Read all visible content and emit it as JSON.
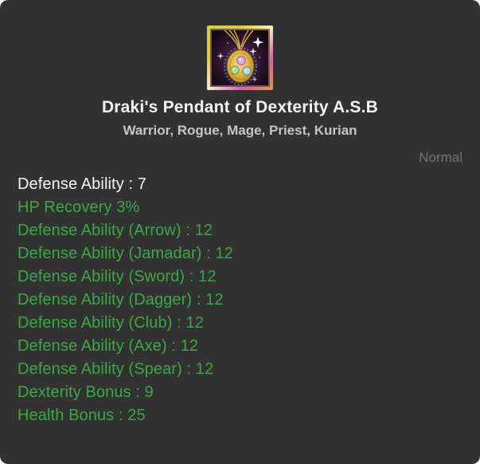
{
  "card": {
    "title": "Draki's Pendant of Dexterity A.S.B",
    "classes": "Warrior, Rogue, Mage, Priest, Kurian",
    "rarity": "Normal"
  },
  "icon": {
    "name": "pendant-icon",
    "description": "gold pendant with three gems in gradient gold frame"
  },
  "colors": {
    "card_bg": "#323232",
    "stat_white": "#f4f4f4",
    "stat_green": "#3aa845",
    "subtitle_gray": "#c3c6c9",
    "rarity_gray": "#6d7278"
  },
  "stats": [
    {
      "text": "Defense Ability : 7",
      "color": "white"
    },
    {
      "text": "HP Recovery 3%",
      "color": "green"
    },
    {
      "text": "Defense Ability (Arrow) : 12",
      "color": "green"
    },
    {
      "text": "Defense Ability (Jamadar) : 12",
      "color": "green"
    },
    {
      "text": "Defense Ability (Sword) : 12",
      "color": "green"
    },
    {
      "text": "Defense Ability (Dagger) : 12",
      "color": "green"
    },
    {
      "text": "Defense Ability (Club) : 12",
      "color": "green"
    },
    {
      "text": "Defense Ability (Axe) : 12",
      "color": "green"
    },
    {
      "text": "Defense Ability (Spear) : 12",
      "color": "green"
    },
    {
      "text": "Dexterity Bonus : 9",
      "color": "green"
    },
    {
      "text": "Health Bonus : 25",
      "color": "green"
    }
  ]
}
